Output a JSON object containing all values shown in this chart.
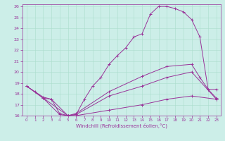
{
  "xlabel": "Windchill (Refroidissement éolien,°C)",
  "bg_color": "#cceee8",
  "line_color": "#993399",
  "grid_color": "#aaddcc",
  "xlim": [
    -0.5,
    23.5
  ],
  "ylim": [
    16,
    26.2
  ],
  "xticks": [
    0,
    1,
    2,
    3,
    4,
    5,
    6,
    7,
    8,
    9,
    10,
    11,
    12,
    13,
    14,
    15,
    16,
    17,
    18,
    19,
    20,
    21,
    22,
    23
  ],
  "yticks": [
    16,
    17,
    18,
    19,
    20,
    21,
    22,
    23,
    24,
    25,
    26
  ],
  "series": [
    {
      "x": [
        0,
        1,
        2,
        3,
        4,
        5,
        6,
        7,
        8,
        9,
        10,
        11,
        12,
        13,
        14,
        15,
        16,
        17,
        18,
        19,
        20,
        21,
        22,
        23
      ],
      "y": [
        18.7,
        18.2,
        17.7,
        17.5,
        16.2,
        16.0,
        16.1,
        17.5,
        18.7,
        19.5,
        20.7,
        21.5,
        22.2,
        23.2,
        23.5,
        25.3,
        26.0,
        26.0,
        25.8,
        25.5,
        24.8,
        23.2,
        18.4,
        17.6
      ]
    },
    {
      "x": [
        0,
        5,
        6,
        10,
        14,
        17,
        20,
        21,
        22,
        23
      ],
      "y": [
        18.7,
        16.0,
        16.2,
        18.2,
        19.6,
        20.5,
        20.7,
        19.5,
        18.4,
        18.4
      ]
    },
    {
      "x": [
        0,
        2,
        3,
        5,
        6,
        10,
        14,
        17,
        20,
        23
      ],
      "y": [
        18.7,
        17.6,
        17.5,
        16.0,
        16.1,
        17.8,
        18.7,
        19.5,
        20.0,
        17.5
      ]
    },
    {
      "x": [
        2,
        4,
        5,
        6,
        10,
        14,
        17,
        20,
        23
      ],
      "y": [
        17.6,
        16.1,
        16.0,
        16.0,
        16.5,
        17.0,
        17.5,
        17.8,
        17.5
      ]
    }
  ]
}
